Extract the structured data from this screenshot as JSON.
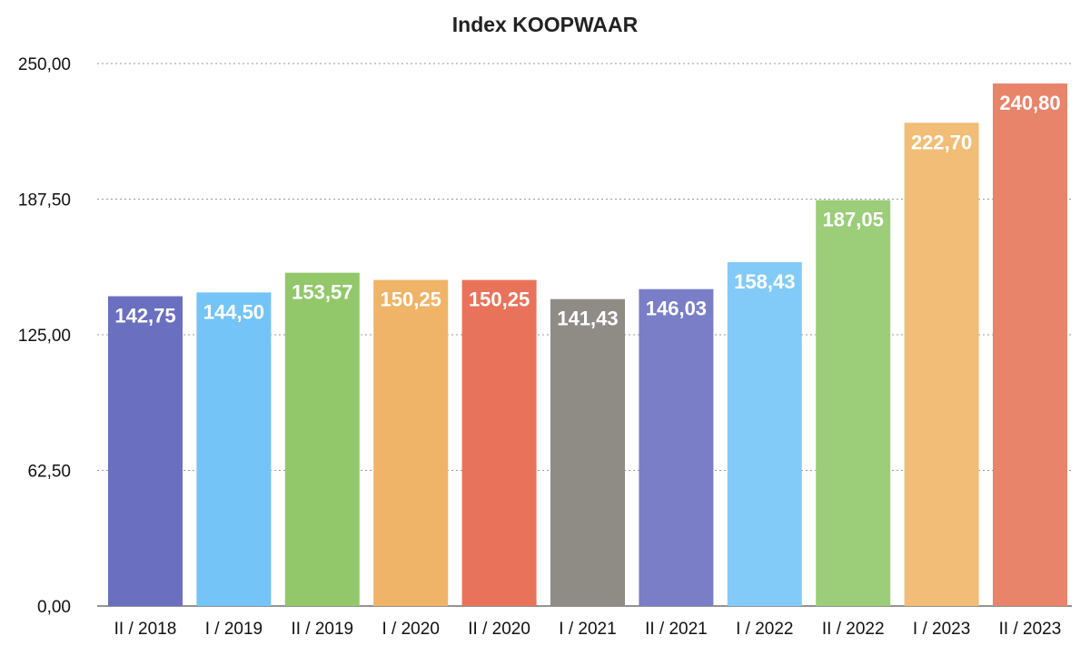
{
  "chart_data": {
    "type": "bar",
    "title": "Index KOOPWAAR",
    "xlabel": "",
    "ylabel": "",
    "ylim": [
      0,
      250
    ],
    "yticks": [
      "0,00",
      "62,50",
      "125,00",
      "187,50",
      "250,00"
    ],
    "ytick_values": [
      0,
      62.5,
      125,
      187.5,
      250
    ],
    "grid": "horizontal dotted",
    "legend": "none",
    "categories": [
      "II / 2018",
      "I / 2019",
      "II / 2019",
      "I / 2020",
      "II / 2020",
      "I / 2021",
      "II / 2021",
      "I / 2022",
      "II / 2022",
      "I / 2023",
      "II / 2023"
    ],
    "values": [
      142.75,
      144.5,
      153.57,
      150.25,
      150.25,
      141.43,
      146.03,
      158.43,
      187.05,
      222.7,
      240.8
    ],
    "value_labels": [
      "142,75",
      "144,50",
      "153,57",
      "150,25",
      "150,25",
      "141,43",
      "146,03",
      "158,43",
      "187,05",
      "222,70",
      "240,80"
    ],
    "colors": [
      "#6a6fc0",
      "#74c4f7",
      "#92c86a",
      "#f0b468",
      "#e8735a",
      "#8f8c86",
      "#7a7ec6",
      "#82cbf8",
      "#9ccd78",
      "#f2bd76",
      "#e8846a"
    ]
  }
}
